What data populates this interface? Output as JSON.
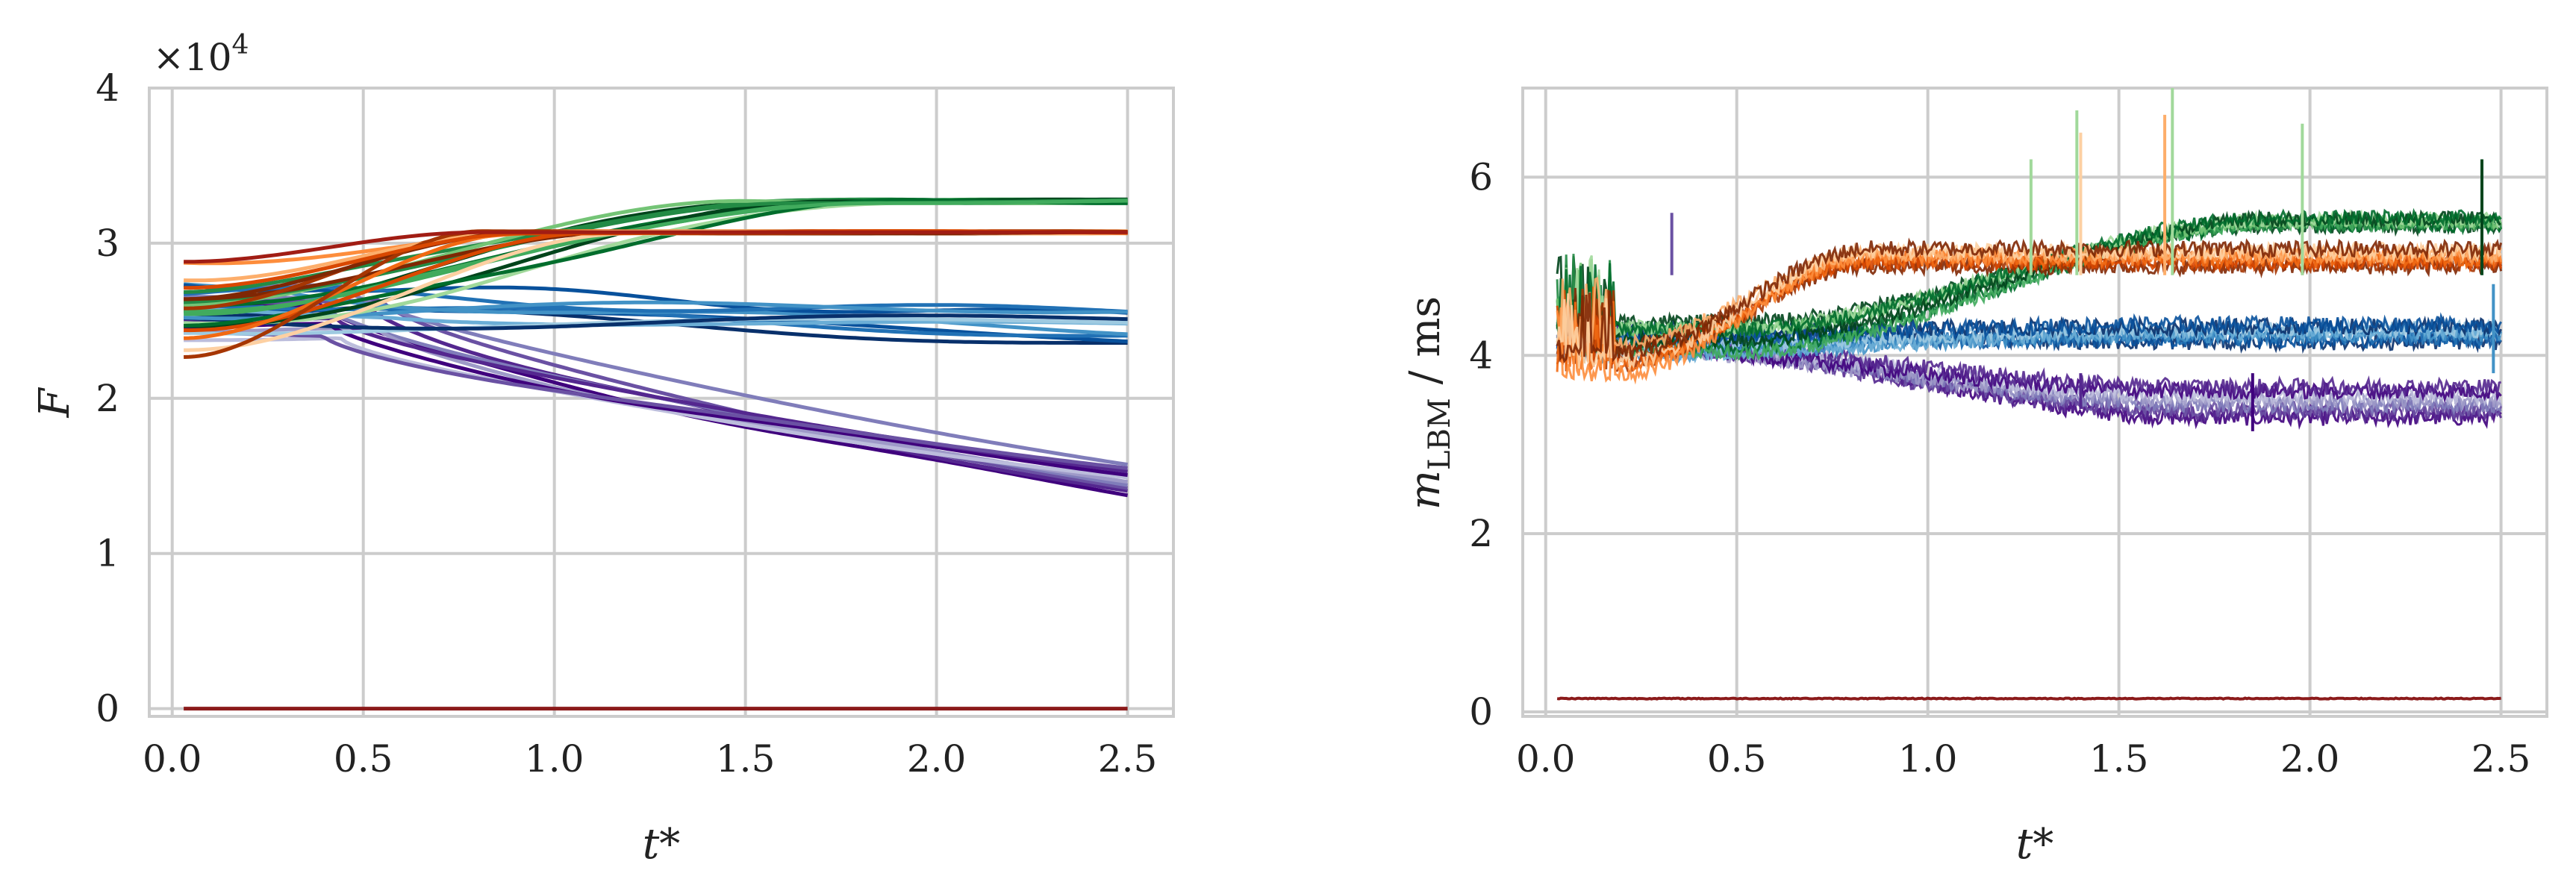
{
  "chart_data": [
    {
      "type": "line",
      "panel": "left",
      "title": "",
      "xlabel": "t*",
      "ylabel": "F",
      "offset_label": "×10",
      "offset_exponent": "4",
      "xlim": [
        -0.06,
        2.62
      ],
      "ylim": [
        -0.05,
        4.0
      ],
      "xticks": [
        "0.0",
        "0.5",
        "1.0",
        "1.5",
        "2.0",
        "2.5"
      ],
      "yticks": [
        "0",
        "1",
        "2",
        "3",
        "4"
      ],
      "grid": true,
      "groups": [
        {
          "name": "purple",
          "colors": [
            "#3f007d",
            "#54278f",
            "#6a51a3",
            "#807dba",
            "#9e9ac8",
            "#bcbddc"
          ],
          "count": 10,
          "start": [
            2.35,
            2.75
          ],
          "end": [
            1.38,
            1.58
          ],
          "flat_until": [
            0.3,
            0.6
          ],
          "jitter": 0.02
        },
        {
          "name": "blue",
          "colors": [
            "#08306b",
            "#08519c",
            "#2171b5",
            "#4292c6",
            "#6baed6",
            "#9ecae1"
          ],
          "count": 10,
          "start": [
            2.35,
            2.85
          ],
          "end": [
            2.36,
            2.58
          ],
          "flat_until": [
            0.2,
            0.6
          ],
          "jitter": 0.06
        },
        {
          "name": "green",
          "colors": [
            "#00441b",
            "#006d2c",
            "#238b45",
            "#41ab5d",
            "#74c476",
            "#a1d99b"
          ],
          "count": 10,
          "start": [
            2.35,
            2.8
          ],
          "end": [
            3.27,
            3.27
          ],
          "flat_until": [
            0.2,
            0.7
          ],
          "reach": [
            1.45,
            2.05
          ],
          "jitter": 0.03
        },
        {
          "name": "orange",
          "colors": [
            "#7f2704",
            "#a63603",
            "#d94801",
            "#f16913",
            "#fd8d3c",
            "#fdae6b",
            "#fdd0a2"
          ],
          "count": 10,
          "start": [
            2.2,
            2.9
          ],
          "end": [
            3.07,
            3.07
          ],
          "reach": [
            0.75,
            1.25
          ],
          "jitter": 0.02
        },
        {
          "name": "baseline",
          "colors": [
            "#8b1a1a"
          ],
          "flat_value": 0.0
        },
        {
          "name": "top-flat",
          "colors": [
            "#a11d14"
          ],
          "flat_value": 3.07,
          "start_value": 2.88,
          "reach_x": 0.8
        }
      ]
    },
    {
      "type": "line",
      "panel": "right",
      "title": "",
      "xlabel": "t*",
      "ylabel": "m_LBM / ms",
      "xlim": [
        -0.06,
        2.62
      ],
      "ylim": [
        -0.05,
        7.0
      ],
      "xticks": [
        "0.0",
        "0.5",
        "1.0",
        "1.5",
        "2.0",
        "2.5"
      ],
      "yticks": [
        "0",
        "2",
        "4",
        "6"
      ],
      "grid": true,
      "groups": [
        {
          "name": "purple",
          "colors": [
            "#3f007d",
            "#54278f",
            "#6a51a3",
            "#807dba",
            "#9e9ac8",
            "#bcbddc"
          ],
          "count": 8,
          "start": [
            4.0,
            4.3
          ],
          "end": [
            3.3,
            3.65
          ],
          "noise": 0.09
        },
        {
          "name": "blue",
          "colors": [
            "#08306b",
            "#08519c",
            "#2171b5",
            "#4292c6",
            "#6baed6",
            "#9ecae1"
          ],
          "count": 8,
          "start": [
            4.0,
            4.4
          ],
          "end": [
            4.15,
            4.35
          ],
          "noise": 0.09
        },
        {
          "name": "green",
          "colors": [
            "#00441b",
            "#006d2c",
            "#238b45",
            "#41ab5d",
            "#74c476",
            "#a1d99b"
          ],
          "count": 8,
          "start": [
            4.0,
            4.4
          ],
          "end": [
            5.45,
            5.55
          ],
          "noise": 0.08
        },
        {
          "name": "orange",
          "colors": [
            "#7f2704",
            "#a63603",
            "#d94801",
            "#f16913",
            "#fd8d3c",
            "#fdae6b",
            "#fdd0a2"
          ],
          "count": 8,
          "start": [
            3.8,
            4.2
          ],
          "end": [
            5.0,
            5.2
          ],
          "noise": 0.09
        },
        {
          "name": "baseline",
          "colors": [
            "#8b1a1a"
          ],
          "flat_value": 0.15,
          "noise": 0.01
        }
      ],
      "spikes": [
        {
          "x": 0.33,
          "y": 5.6,
          "color": "#6a51a3"
        },
        {
          "x": 1.27,
          "y": 6.2,
          "color": "#a1d99b"
        },
        {
          "x": 1.39,
          "y": 6.75,
          "color": "#a1d99b"
        },
        {
          "x": 1.4,
          "y": 6.5,
          "color": "#fdd0a2"
        },
        {
          "x": 1.62,
          "y": 6.7,
          "color": "#fdae6b"
        },
        {
          "x": 1.64,
          "y": 7.0,
          "color": "#a1d99b"
        },
        {
          "x": 1.98,
          "y": 6.6,
          "color": "#a1d99b"
        },
        {
          "x": 2.45,
          "y": 6.2,
          "color": "#00441b"
        },
        {
          "x": 2.48,
          "y": 4.8,
          "color": "#4292c6"
        },
        {
          "x": 1.85,
          "y": 3.15,
          "color": "#3f007d"
        },
        {
          "x": 1.4,
          "y": 3.4,
          "color": "#54278f"
        }
      ]
    }
  ]
}
